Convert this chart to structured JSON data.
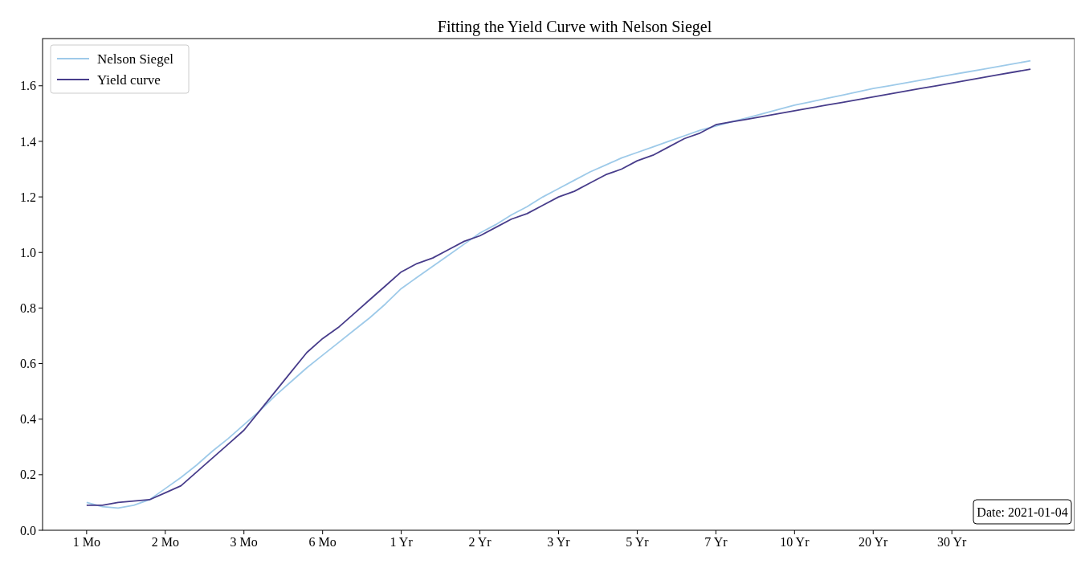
{
  "chart_data": {
    "type": "line",
    "title": "Fitting the Yield Curve with Nelson Siegel",
    "categories": [
      "1 Mo",
      null,
      null,
      null,
      null,
      "2 Mo",
      null,
      null,
      null,
      null,
      "3 Mo",
      null,
      null,
      null,
      null,
      "6 Mo",
      null,
      null,
      null,
      null,
      "1 Yr",
      null,
      null,
      null,
      null,
      "2 Yr",
      null,
      null,
      null,
      null,
      "3 Yr",
      null,
      null,
      null,
      null,
      "5 Yr",
      null,
      null,
      null,
      null,
      "7 Yr",
      null,
      null,
      null,
      null,
      "10 Yr",
      null,
      null,
      null,
      null,
      "20 Yr",
      null,
      null,
      null,
      null,
      "30 Yr",
      null,
      null,
      null,
      null,
      null
    ],
    "ylim": [
      0,
      1.77
    ],
    "yticks": [
      {
        "value": 0,
        "label": "0.0"
      },
      0.2,
      0.4,
      0.6,
      0.8,
      {
        "value": 1,
        "label": "1.0"
      },
      1.2,
      1.4,
      1.6
    ],
    "series": [
      {
        "name": "Nelson Siegel",
        "color": "#9ecae9",
        "values": [
          0.1,
          0.085,
          0.08,
          0.09,
          0.11,
          0.15,
          0.19,
          0.235,
          0.285,
          0.33,
          0.38,
          0.43,
          0.485,
          0.535,
          0.585,
          0.63,
          0.675,
          0.72,
          0.765,
          0.815,
          0.87,
          0.91,
          0.95,
          0.99,
          1.03,
          1.07,
          1.1,
          1.135,
          1.165,
          1.2,
          1.23,
          1.26,
          1.29,
          1.315,
          1.34,
          1.36,
          1.38,
          1.4,
          1.42,
          1.44,
          1.455,
          1.47,
          1.485,
          1.5,
          1.515,
          1.53,
          1.542,
          1.554,
          1.566,
          1.578,
          1.59,
          1.6,
          1.61,
          1.62,
          1.63,
          1.64,
          1.65,
          1.66,
          1.67,
          1.68,
          1.69
        ]
      },
      {
        "name": "Yield curve",
        "color": "#483d8b",
        "values": [
          0.09,
          0.09,
          0.1,
          0.105,
          0.11,
          0.135,
          0.16,
          0.21,
          0.26,
          0.31,
          0.36,
          0.43,
          0.5,
          0.57,
          0.64,
          0.69,
          0.73,
          0.78,
          0.83,
          0.88,
          0.93,
          0.96,
          0.98,
          1.01,
          1.04,
          1.06,
          1.09,
          1.12,
          1.14,
          1.17,
          1.2,
          1.22,
          1.25,
          1.28,
          1.3,
          1.33,
          1.35,
          1.38,
          1.41,
          1.43,
          1.46,
          1.47,
          1.48,
          1.49,
          1.5,
          1.51,
          1.52,
          1.53,
          1.54,
          1.55,
          1.56,
          1.57,
          1.58,
          1.59,
          1.6,
          1.61,
          1.62,
          1.63,
          1.64,
          1.65,
          1.66
        ]
      }
    ],
    "legend": "top left",
    "grid": false,
    "line_style": "solid",
    "annotations": [
      "Date: 2021-01-04"
    ]
  }
}
